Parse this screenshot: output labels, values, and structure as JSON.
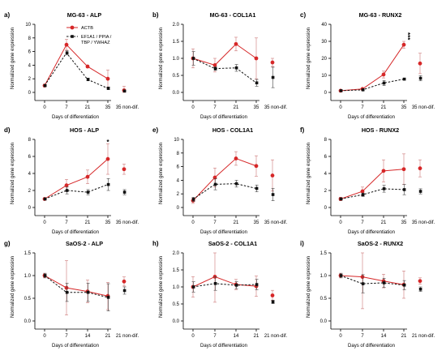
{
  "colors": {
    "red": "#d62728",
    "black": "#111111",
    "axis": "#000000"
  },
  "legend": {
    "entries": [
      "ACTB",
      "EF1A1 / PPIA /",
      "TBP / YWHAZ"
    ]
  },
  "chart_data": [
    {
      "type": "line",
      "panel_label": "a)",
      "title": "MG-63 - ALP",
      "xlabel": "Days of differentiation",
      "ylabel": "Normalized gene expression",
      "categories": [
        "0",
        "7",
        "21",
        "35",
        "35 non-dif."
      ],
      "ylim": [
        0,
        10
      ],
      "yticks": [
        0,
        2,
        4,
        6,
        8,
        10
      ],
      "series": [
        {
          "name": "ACTB",
          "color": "#d62728",
          "style": "solid",
          "marker": "circle",
          "values": [
            1.0,
            7.0,
            3.8,
            2.0,
            0.3
          ],
          "errors": [
            0.2,
            0.8,
            0.2,
            1.3,
            0.6
          ]
        },
        {
          "name": "EF1A1 / PPIA / TBP / YWHAZ",
          "color": "#111111",
          "style": "dashed",
          "marker": "square",
          "values": [
            1.0,
            5.8,
            1.9,
            0.6,
            0.2
          ],
          "errors": [
            0.1,
            0.3,
            0.2,
            0.2,
            0.1
          ]
        }
      ],
      "annotations": []
    },
    {
      "type": "line",
      "panel_label": "b)",
      "title": "MG-63 - COL1A1",
      "xlabel": "Days of differentiation",
      "ylabel": "Normalized gene expression",
      "categories": [
        "0",
        "7",
        "21",
        "35",
        "35 non-dif."
      ],
      "ylim": [
        0,
        2.0
      ],
      "yticks": [
        0.0,
        0.5,
        1.0,
        1.5,
        2.0
      ],
      "series": [
        {
          "name": "ACTB",
          "color": "#d62728",
          "style": "solid",
          "marker": "circle",
          "values": [
            1.0,
            0.8,
            1.42,
            1.0,
            0.88
          ],
          "errors": [
            0.28,
            0.2,
            0.2,
            0.6,
            0.12
          ]
        },
        {
          "name": "EF1A1 / PPIA / TBP / YWHAZ",
          "color": "#111111",
          "style": "dashed",
          "marker": "square",
          "values": [
            1.0,
            0.7,
            0.72,
            0.28,
            0.44
          ],
          "errors": [
            0.2,
            0.05,
            0.1,
            0.1,
            0.3
          ]
        }
      ],
      "annotations": []
    },
    {
      "type": "line",
      "panel_label": "c)",
      "title": "MG-63 - RUNX2",
      "xlabel": "Days of differentiation",
      "ylabel": "Normalized gene expression",
      "categories": [
        "0",
        "7",
        "21",
        "35",
        "35 non-dif."
      ],
      "ylim": [
        0,
        40
      ],
      "yticks": [
        0,
        10,
        20,
        30,
        40
      ],
      "series": [
        {
          "name": "ACTB",
          "color": "#d62728",
          "style": "solid",
          "marker": "circle",
          "values": [
            1.0,
            2.0,
            10.5,
            28.0,
            17.0
          ],
          "errors": [
            0.5,
            0.5,
            2.0,
            2.0,
            6.0
          ]
        },
        {
          "name": "EF1A1 / PPIA / TBP / YWHAZ",
          "color": "#111111",
          "style": "dashed",
          "marker": "square",
          "values": [
            1.0,
            1.5,
            5.5,
            7.8,
            8.3
          ],
          "errors": [
            0.3,
            0.3,
            1.5,
            0.5,
            1.5
          ]
        }
      ],
      "annotations": [
        {
          "text": "***",
          "x_index": 3,
          "y": 33
        }
      ]
    },
    {
      "type": "line",
      "panel_label": "d)",
      "title": "HOS - ALP",
      "xlabel": "Days of differentiation",
      "ylabel": "Normalized gene expression",
      "categories": [
        "0",
        "7",
        "21",
        "35",
        "35 non-dif."
      ],
      "ylim": [
        0,
        8
      ],
      "yticks": [
        0,
        2,
        4,
        6,
        8
      ],
      "series": [
        {
          "name": "ACTB",
          "color": "#d62728",
          "style": "solid",
          "marker": "circle",
          "values": [
            1.0,
            2.6,
            3.6,
            5.7,
            4.5
          ],
          "errors": [
            0.1,
            0.7,
            0.8,
            1.8,
            0.6
          ]
        },
        {
          "name": "EF1A1 / PPIA / TBP / YWHAZ",
          "color": "#111111",
          "style": "dashed",
          "marker": "square",
          "values": [
            1.0,
            2.0,
            1.8,
            2.7,
            1.8
          ],
          "errors": [
            0.1,
            0.4,
            0.3,
            0.7,
            0.3
          ]
        }
      ],
      "annotations": [
        {
          "text": "*",
          "x_index": 3,
          "y": 7.7
        }
      ]
    },
    {
      "type": "line",
      "panel_label": "e)",
      "title": "HOS - COL1A1",
      "xlabel": "Days of differentiation",
      "ylabel": "Normalized gene expression",
      "categories": [
        "0",
        "7",
        "21",
        "35",
        "35 non-dif."
      ],
      "ylim": [
        0,
        10
      ],
      "yticks": [
        0,
        2,
        4,
        6,
        8,
        10
      ],
      "series": [
        {
          "name": "ACTB",
          "color": "#d62728",
          "style": "solid",
          "marker": "circle",
          "values": [
            1.0,
            4.4,
            7.2,
            6.1,
            4.7
          ],
          "errors": [
            0.4,
            1.4,
            1.0,
            1.5,
            2.3
          ]
        },
        {
          "name": "EF1A1 / PPIA / TBP / YWHAZ",
          "color": "#111111",
          "style": "dashed",
          "marker": "square",
          "values": [
            1.2,
            3.4,
            3.5,
            2.8,
            1.9
          ],
          "errors": [
            0.3,
            0.8,
            0.5,
            0.5,
            0.9
          ]
        }
      ],
      "annotations": []
    },
    {
      "type": "line",
      "panel_label": "f)",
      "title": "HOS - RUNX2",
      "xlabel": "Days of differentiation",
      "ylabel": "Normalized gene expression",
      "categories": [
        "0",
        "7",
        "21",
        "35",
        "35 non-dif."
      ],
      "ylim": [
        0,
        8
      ],
      "yticks": [
        0,
        2,
        4,
        6,
        8
      ],
      "series": [
        {
          "name": "ACTB",
          "color": "#d62728",
          "style": "solid",
          "marker": "circle",
          "values": [
            1.0,
            1.9,
            4.3,
            4.5,
            4.6
          ],
          "errors": [
            0.2,
            0.5,
            1.3,
            1.8,
            1.0
          ]
        },
        {
          "name": "EF1A1 / PPIA / TBP / YWHAZ",
          "color": "#111111",
          "style": "dashed",
          "marker": "square",
          "values": [
            1.0,
            1.5,
            2.2,
            2.1,
            1.9
          ],
          "errors": [
            0.1,
            0.2,
            0.4,
            0.6,
            0.3
          ]
        }
      ],
      "annotations": []
    },
    {
      "type": "line",
      "panel_label": "g)",
      "title": "SaOS-2 - ALP",
      "xlabel": "Days of differentiation",
      "ylabel": "Normalized gene expression",
      "categories": [
        "0",
        "7",
        "14",
        "21",
        "21 non-dif."
      ],
      "ylim": [
        0,
        1.5
      ],
      "yticks": [
        0.0,
        0.5,
        1.0,
        1.5
      ],
      "series": [
        {
          "name": "ACTB",
          "color": "#d62728",
          "style": "solid",
          "marker": "circle",
          "values": [
            1.0,
            0.73,
            0.65,
            0.55,
            0.87
          ],
          "errors": [
            0.05,
            0.6,
            0.25,
            0.3,
            0.1
          ]
        },
        {
          "name": "EF1A1 / PPIA / TBP / YWHAZ",
          "color": "#111111",
          "style": "dashed",
          "marker": "square",
          "values": [
            1.0,
            0.63,
            0.63,
            0.52,
            0.67
          ],
          "errors": [
            0.05,
            0.2,
            0.2,
            0.3,
            0.08
          ]
        }
      ],
      "annotations": []
    },
    {
      "type": "line",
      "panel_label": "h)",
      "title": "SaOS-2 - COL1A1",
      "xlabel": "Days of differentiation",
      "ylabel": "Normalized gene expression",
      "categories": [
        "0",
        "7",
        "14",
        "21",
        "21 non-dif."
      ],
      "ylim": [
        0,
        2.0
      ],
      "yticks": [
        0.0,
        0.5,
        1.0,
        1.5,
        2.0
      ],
      "series": [
        {
          "name": "ACTB",
          "color": "#d62728",
          "style": "solid",
          "marker": "circle",
          "values": [
            1.0,
            1.3,
            1.07,
            1.02,
            0.75
          ],
          "errors": [
            0.3,
            0.75,
            0.15,
            0.3,
            0.15
          ]
        },
        {
          "name": "EF1A1 / PPIA / TBP / YWHAZ",
          "color": "#111111",
          "style": "dashed",
          "marker": "square",
          "values": [
            1.0,
            1.1,
            1.05,
            1.07,
            0.56
          ],
          "errors": [
            0.15,
            0.2,
            0.1,
            0.15,
            0.05
          ]
        }
      ],
      "annotations": []
    },
    {
      "type": "line",
      "panel_label": "i)",
      "title": "SaOS-2 - RUNX2",
      "xlabel": "Days of differentiation",
      "ylabel": "Normalized gene expression",
      "categories": [
        "0",
        "7",
        "14",
        "21",
        "21 non-dif."
      ],
      "ylim": [
        0,
        1.5
      ],
      "yticks": [
        0.0,
        0.5,
        1.0,
        1.5
      ],
      "series": [
        {
          "name": "ACTB",
          "color": "#d62728",
          "style": "solid",
          "marker": "circle",
          "values": [
            1.0,
            0.97,
            0.88,
            0.8,
            0.88
          ],
          "errors": [
            0.05,
            0.7,
            0.15,
            0.3,
            0.07
          ]
        },
        {
          "name": "EF1A1 / PPIA / TBP / YWHAZ",
          "color": "#111111",
          "style": "dashed",
          "marker": "square",
          "values": [
            1.0,
            0.82,
            0.84,
            0.79,
            0.7
          ],
          "errors": [
            0.05,
            0.2,
            0.1,
            0.1,
            0.05
          ]
        }
      ],
      "annotations": []
    }
  ]
}
